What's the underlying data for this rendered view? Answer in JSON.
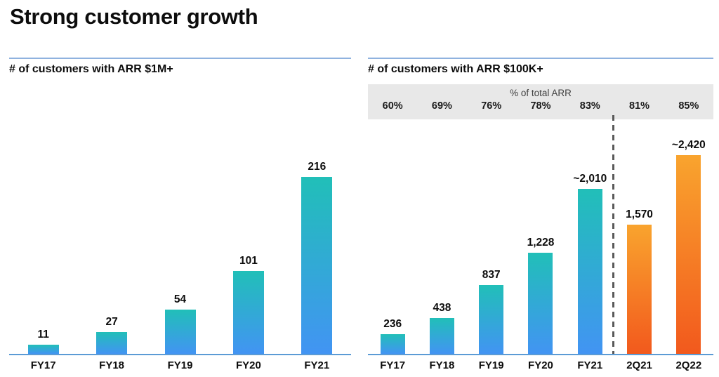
{
  "slide": {
    "title": "Strong customer growth"
  },
  "colors": {
    "teal_gradient_top": "#21bfb8",
    "blue_gradient_bottom": "#4294f3",
    "orange_gradient_top": "#f9a42e",
    "orange_gradient_bottom": "#f2591d",
    "header_rule": "#8fb2df",
    "axis_line": "#5b9bd5",
    "band_background": "#e8e8e8",
    "divider_dash": "#595959"
  },
  "chart_data": [
    {
      "type": "bar",
      "title": "# of customers with ARR $1M+",
      "categories": [
        "FY17",
        "FY18",
        "FY19",
        "FY20",
        "FY21"
      ],
      "values": [
        11,
        27,
        54,
        101,
        216
      ],
      "data_labels": [
        "11",
        "27",
        "54",
        "101",
        "216"
      ],
      "bar_styles": [
        "teal",
        "teal",
        "teal",
        "teal",
        "teal"
      ],
      "xlabel": "",
      "ylabel": "",
      "ylim": [
        0,
        216
      ],
      "grid": false,
      "legend": false
    },
    {
      "type": "bar",
      "title": "# of customers with ARR $100K+",
      "band": {
        "title": "% of total ARR",
        "values": [
          "60%",
          "69%",
          "76%",
          "78%",
          "83%",
          "81%",
          "85%"
        ]
      },
      "categories": [
        "FY17",
        "FY18",
        "FY19",
        "FY20",
        "FY21",
        "2Q21",
        "2Q22"
      ],
      "values": [
        236,
        438,
        837,
        1228,
        2010,
        1570,
        2420
      ],
      "data_labels": [
        "236",
        "438",
        "837",
        "1,228",
        "~2,010",
        "1,570",
        "~2,420"
      ],
      "bar_styles": [
        "teal",
        "teal",
        "teal",
        "teal",
        "teal",
        "orange",
        "orange"
      ],
      "divider_after": "FY21",
      "xlabel": "",
      "ylabel": "",
      "ylim": [
        0,
        2420
      ],
      "grid": false,
      "legend": false
    }
  ]
}
